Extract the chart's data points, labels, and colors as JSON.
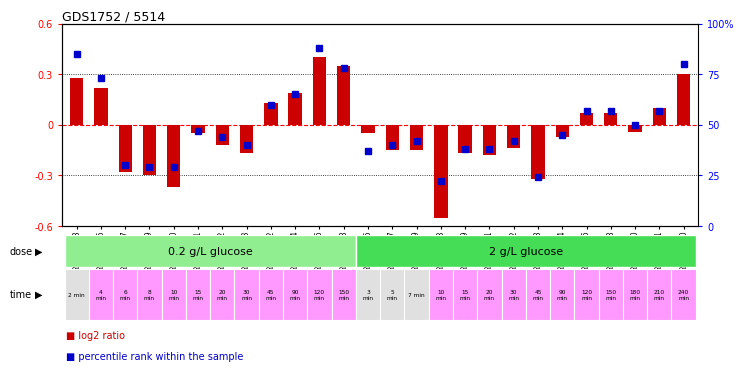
{
  "title": "GDS1752 / 5514",
  "samples": [
    "GSM95003",
    "GSM95005",
    "GSM95007",
    "GSM95009",
    "GSM95010",
    "GSM95011",
    "GSM95012",
    "GSM95013",
    "GSM95002",
    "GSM95004",
    "GSM95006",
    "GSM95008",
    "GSM94995",
    "GSM94997",
    "GSM94999",
    "GSM94988",
    "GSM94989",
    "GSM94991",
    "GSM94992",
    "GSM94993",
    "GSM94994",
    "GSM94996",
    "GSM94998",
    "GSM95000",
    "GSM95001",
    "GSM94990"
  ],
  "log2_ratio": [
    0.28,
    0.22,
    -0.28,
    -0.3,
    -0.37,
    -0.05,
    -0.12,
    -0.17,
    0.13,
    0.19,
    0.4,
    0.35,
    -0.05,
    -0.15,
    -0.15,
    -0.55,
    -0.17,
    -0.18,
    -0.14,
    -0.32,
    -0.07,
    0.07,
    0.07,
    -0.04,
    0.1,
    0.3
  ],
  "percentile": [
    85,
    73,
    30,
    29,
    29,
    47,
    44,
    40,
    60,
    65,
    88,
    78,
    37,
    40,
    42,
    22,
    38,
    38,
    42,
    24,
    45,
    57,
    57,
    50,
    57,
    80
  ],
  "dose_groups": [
    {
      "label": "0.2 g/L glucose",
      "start": 0,
      "end": 12,
      "color": "#90EE90"
    },
    {
      "label": "2 g/L glucose",
      "start": 12,
      "end": 26,
      "color": "#44DD55"
    }
  ],
  "time_labels": [
    "2 min",
    "4\nmin",
    "6\nmin",
    "8\nmin",
    "10\nmin",
    "15\nmin",
    "20\nmin",
    "30\nmin",
    "45\nmin",
    "90\nmin",
    "120\nmin",
    "150\nmin",
    "3\nmin",
    "5\nmin",
    "7 min",
    "10\nmin",
    "15\nmin",
    "20\nmin",
    "30\nmin",
    "45\nmin",
    "90\nmin",
    "120\nmin",
    "150\nmin",
    "180\nmin",
    "210\nmin",
    "240\nmin"
  ],
  "time_colors": [
    "#E0E0E0",
    "#FF99FF",
    "#FF99FF",
    "#FF99FF",
    "#FF99FF",
    "#FF99FF",
    "#FF99FF",
    "#FF99FF",
    "#FF99FF",
    "#FF99FF",
    "#FF99FF",
    "#FF99FF",
    "#E0E0E0",
    "#E0E0E0",
    "#E0E0E0",
    "#FF99FF",
    "#FF99FF",
    "#FF99FF",
    "#FF99FF",
    "#FF99FF",
    "#FF99FF",
    "#FF99FF",
    "#FF99FF",
    "#FF99FF",
    "#FF99FF",
    "#FF99FF"
  ],
  "ylim": [
    -0.6,
    0.6
  ],
  "yticks": [
    -0.6,
    -0.3,
    0.0,
    0.3,
    0.6
  ],
  "y2ticks": [
    0,
    25,
    50,
    75,
    100
  ],
  "bar_color": "#CC0000",
  "dot_color": "#0000CC",
  "bar_width": 0.55,
  "dot_size": 4
}
